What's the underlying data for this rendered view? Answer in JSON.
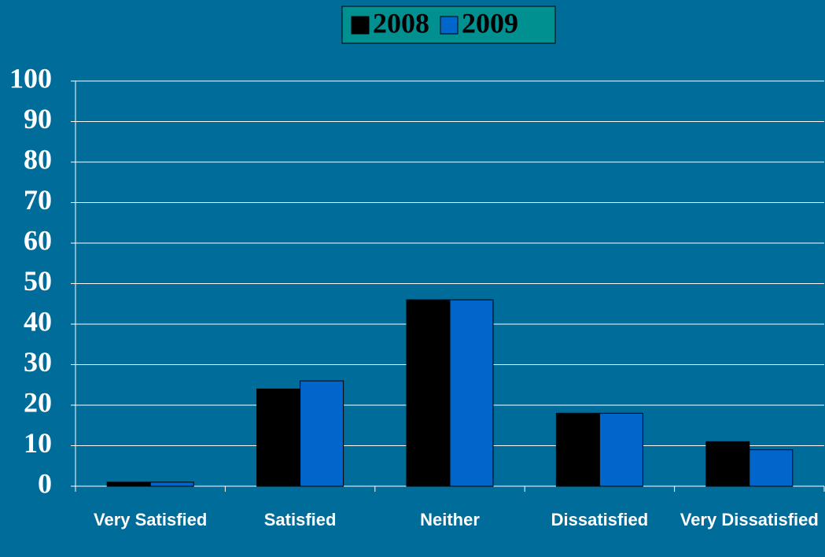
{
  "chart_data": {
    "type": "bar",
    "categories": [
      "Very Satisfied",
      "Satisfied",
      "Neither",
      "Dissatisfied",
      "Very Dissatisfied"
    ],
    "series": [
      {
        "name": "2008",
        "color": "#000000",
        "values": [
          1,
          24,
          46,
          18,
          11
        ]
      },
      {
        "name": "2009",
        "color": "#0066cc",
        "values": [
          1,
          26,
          46,
          18,
          9
        ]
      }
    ],
    "ylim": [
      0,
      100
    ],
    "yticks": [
      0,
      10,
      20,
      30,
      40,
      50,
      60,
      70,
      80,
      90,
      100
    ],
    "grid": true,
    "legend": "top"
  }
}
